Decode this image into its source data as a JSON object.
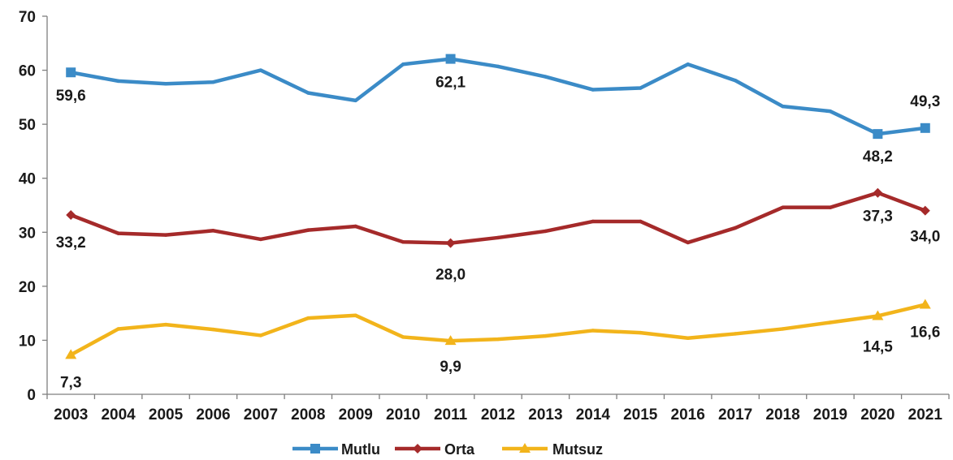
{
  "chart_data": {
    "type": "line",
    "categories": [
      "2003",
      "2004",
      "2005",
      "2006",
      "2007",
      "2008",
      "2009",
      "2010",
      "2011",
      "2012",
      "2013",
      "2014",
      "2015",
      "2016",
      "2017",
      "2018",
      "2019",
      "2020",
      "2021"
    ],
    "ylim": [
      0,
      70
    ],
    "yticks": [
      0,
      10,
      20,
      30,
      40,
      50,
      60,
      70
    ],
    "grid": false,
    "legend_position": "bottom",
    "series": [
      {
        "name": "Mutlu",
        "color": "#3b8bc7",
        "marker": "square",
        "values": [
          59.6,
          58.0,
          57.5,
          57.8,
          60.0,
          55.8,
          54.4,
          61.1,
          62.1,
          60.7,
          58.8,
          56.4,
          56.7,
          61.1,
          58.1,
          53.3,
          52.4,
          48.2,
          49.3
        ],
        "labels": [
          {
            "index": 0,
            "text": "59,6"
          },
          {
            "index": 8,
            "text": "62,1"
          },
          {
            "index": 17,
            "text": "48,2"
          },
          {
            "index": 18,
            "text": "49,3"
          }
        ]
      },
      {
        "name": "Orta",
        "color": "#a52a2a",
        "marker": "diamond",
        "values": [
          33.2,
          29.8,
          29.5,
          30.3,
          28.7,
          30.4,
          31.1,
          28.2,
          28.0,
          29.0,
          30.2,
          32.0,
          32.0,
          28.1,
          30.8,
          34.6,
          34.6,
          37.3,
          34.0
        ],
        "labels": [
          {
            "index": 0,
            "text": "33,2"
          },
          {
            "index": 8,
            "text": "28,0"
          },
          {
            "index": 17,
            "text": "37,3"
          },
          {
            "index": 18,
            "text": "34,0"
          }
        ]
      },
      {
        "name": "Mutsuz",
        "color": "#f2b41b",
        "marker": "triangle",
        "values": [
          7.3,
          12.1,
          12.9,
          12.0,
          10.9,
          14.1,
          14.6,
          10.6,
          9.9,
          10.2,
          10.8,
          11.8,
          11.4,
          10.4,
          11.2,
          12.1,
          13.3,
          14.5,
          16.6
        ],
        "labels": [
          {
            "index": 0,
            "text": "7,3"
          },
          {
            "index": 8,
            "text": "9,9"
          },
          {
            "index": 17,
            "text": "14,5"
          },
          {
            "index": 18,
            "text": "16,6"
          }
        ]
      }
    ]
  }
}
